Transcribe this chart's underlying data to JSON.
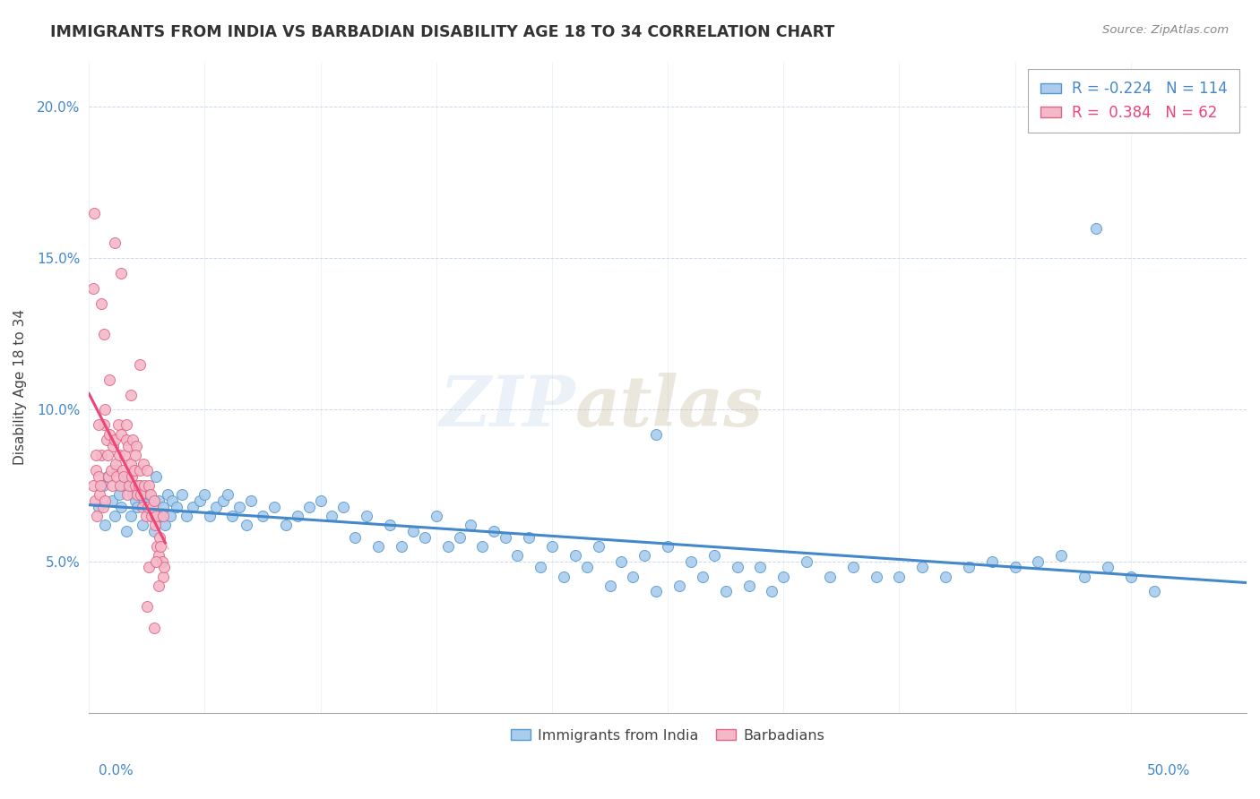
{
  "title": "IMMIGRANTS FROM INDIA VS BARBADIAN DISABILITY AGE 18 TO 34 CORRELATION CHART",
  "source": "Source: ZipAtlas.com",
  "ylabel": "Disability Age 18 to 34",
  "watermark_zip": "ZIP",
  "watermark_atlas": "atlas",
  "xlim": [
    0.0,
    50.0
  ],
  "ylim": [
    0.0,
    21.5
  ],
  "yticks": [
    0.0,
    5.0,
    10.0,
    15.0,
    20.0
  ],
  "ytick_labels": [
    "",
    "5.0%",
    "10.0%",
    "15.0%",
    "20.0%"
  ],
  "xticks": [
    0.0,
    5.0,
    10.0,
    15.0,
    20.0,
    25.0,
    30.0,
    35.0,
    40.0,
    45.0,
    50.0
  ],
  "blue_R": -0.224,
  "blue_N": 114,
  "pink_R": 0.384,
  "pink_N": 62,
  "blue_face_color": "#aaccee",
  "blue_edge_color": "#5599cc",
  "pink_face_color": "#f5b8c8",
  "pink_edge_color": "#dd6688",
  "blue_line_color": "#4488cc",
  "pink_line_color": "#ee4477",
  "pink_dashed_color": "#ddaaaa",
  "legend_label_blue": "Immigrants from India",
  "legend_label_pink": "Barbadians",
  "blue_points_x": [
    0.4,
    0.6,
    0.7,
    0.8,
    1.0,
    1.1,
    1.2,
    1.3,
    1.4,
    1.5,
    1.6,
    1.7,
    1.8,
    1.9,
    2.0,
    2.1,
    2.2,
    2.3,
    2.4,
    2.5,
    2.6,
    2.7,
    2.8,
    2.9,
    3.0,
    3.1,
    3.2,
    3.3,
    3.4,
    3.5,
    3.6,
    3.8,
    4.0,
    4.2,
    4.5,
    4.8,
    5.0,
    5.2,
    5.5,
    5.8,
    6.0,
    6.2,
    6.5,
    6.8,
    7.0,
    7.5,
    8.0,
    8.5,
    9.0,
    9.5,
    10.0,
    10.5,
    11.0,
    11.5,
    12.0,
    12.5,
    13.0,
    13.5,
    14.0,
    14.5,
    15.0,
    15.5,
    16.0,
    16.5,
    17.0,
    17.5,
    18.0,
    18.5,
    19.0,
    19.5,
    20.0,
    20.5,
    21.0,
    21.5,
    22.0,
    22.5,
    23.0,
    23.5,
    24.0,
    24.5,
    25.0,
    25.5,
    26.0,
    26.5,
    27.0,
    27.5,
    28.0,
    28.5,
    29.0,
    29.5,
    30.0,
    31.0,
    32.0,
    33.0,
    34.0,
    35.0,
    36.0,
    37.0,
    38.0,
    39.0,
    40.0,
    41.0,
    42.0,
    43.0,
    44.0,
    45.0,
    46.0,
    24.5,
    43.5
  ],
  "blue_points_y": [
    6.8,
    7.5,
    6.2,
    7.8,
    7.0,
    6.5,
    8.0,
    7.2,
    6.8,
    7.5,
    6.0,
    7.8,
    6.5,
    7.2,
    7.0,
    6.8,
    7.5,
    6.2,
    7.0,
    6.8,
    7.2,
    6.5,
    6.0,
    7.8,
    7.0,
    6.5,
    6.8,
    6.2,
    7.2,
    6.5,
    7.0,
    6.8,
    7.2,
    6.5,
    6.8,
    7.0,
    7.2,
    6.5,
    6.8,
    7.0,
    7.2,
    6.5,
    6.8,
    6.2,
    7.0,
    6.5,
    6.8,
    6.2,
    6.5,
    6.8,
    7.0,
    6.5,
    6.8,
    5.8,
    6.5,
    5.5,
    6.2,
    5.5,
    6.0,
    5.8,
    6.5,
    5.5,
    5.8,
    6.2,
    5.5,
    6.0,
    5.8,
    5.2,
    5.8,
    4.8,
    5.5,
    4.5,
    5.2,
    4.8,
    5.5,
    4.2,
    5.0,
    4.5,
    5.2,
    4.0,
    5.5,
    4.2,
    5.0,
    4.5,
    5.2,
    4.0,
    4.8,
    4.2,
    4.8,
    4.0,
    4.5,
    5.0,
    4.5,
    4.8,
    4.5,
    4.5,
    4.8,
    4.5,
    4.8,
    5.0,
    4.8,
    5.0,
    5.2,
    4.5,
    4.8,
    4.5,
    4.0,
    9.2,
    16.0
  ],
  "pink_points_x": [
    0.2,
    0.25,
    0.3,
    0.35,
    0.4,
    0.45,
    0.5,
    0.55,
    0.6,
    0.65,
    0.7,
    0.75,
    0.8,
    0.85,
    0.9,
    0.95,
    1.0,
    1.05,
    1.1,
    1.15,
    1.2,
    1.25,
    1.3,
    1.35,
    1.4,
    1.45,
    1.5,
    1.55,
    1.6,
    1.65,
    1.7,
    1.75,
    1.8,
    1.85,
    1.9,
    1.95,
    2.0,
    2.05,
    2.1,
    2.15,
    2.2,
    2.25,
    2.3,
    2.35,
    2.4,
    2.45,
    2.5,
    2.55,
    2.6,
    2.65,
    2.7,
    2.75,
    2.8,
    2.85,
    2.9,
    2.95,
    3.0,
    3.05,
    3.1,
    3.15,
    3.2,
    3.25
  ],
  "pink_points_y": [
    7.5,
    7.0,
    8.0,
    6.5,
    7.8,
    7.2,
    7.5,
    8.5,
    6.8,
    9.5,
    7.0,
    9.0,
    8.5,
    7.8,
    9.2,
    8.0,
    7.5,
    8.8,
    9.0,
    8.2,
    7.8,
    9.5,
    8.5,
    7.5,
    9.2,
    8.0,
    7.8,
    8.5,
    9.0,
    7.2,
    8.8,
    7.5,
    8.2,
    7.8,
    9.0,
    8.0,
    7.5,
    8.8,
    7.2,
    7.5,
    8.0,
    7.2,
    6.8,
    8.2,
    7.5,
    6.5,
    8.0,
    6.8,
    7.5,
    7.2,
    6.5,
    6.8,
    7.0,
    6.2,
    6.5,
    5.5,
    5.2,
    5.8,
    5.5,
    5.0,
    4.5,
    4.8
  ],
  "pink_extra_x": [
    0.18,
    0.22,
    0.55,
    0.65,
    1.1,
    1.4,
    2.5,
    2.8,
    1.8,
    2.2,
    3.0,
    2.6,
    0.3,
    0.4,
    0.7,
    0.9,
    1.6,
    2.0,
    2.9,
    3.2
  ],
  "pink_extra_y": [
    14.0,
    16.5,
    13.5,
    12.5,
    15.5,
    14.5,
    3.5,
    2.8,
    10.5,
    11.5,
    4.2,
    4.8,
    8.5,
    9.5,
    10.0,
    11.0,
    9.5,
    8.5,
    5.0,
    6.5
  ]
}
